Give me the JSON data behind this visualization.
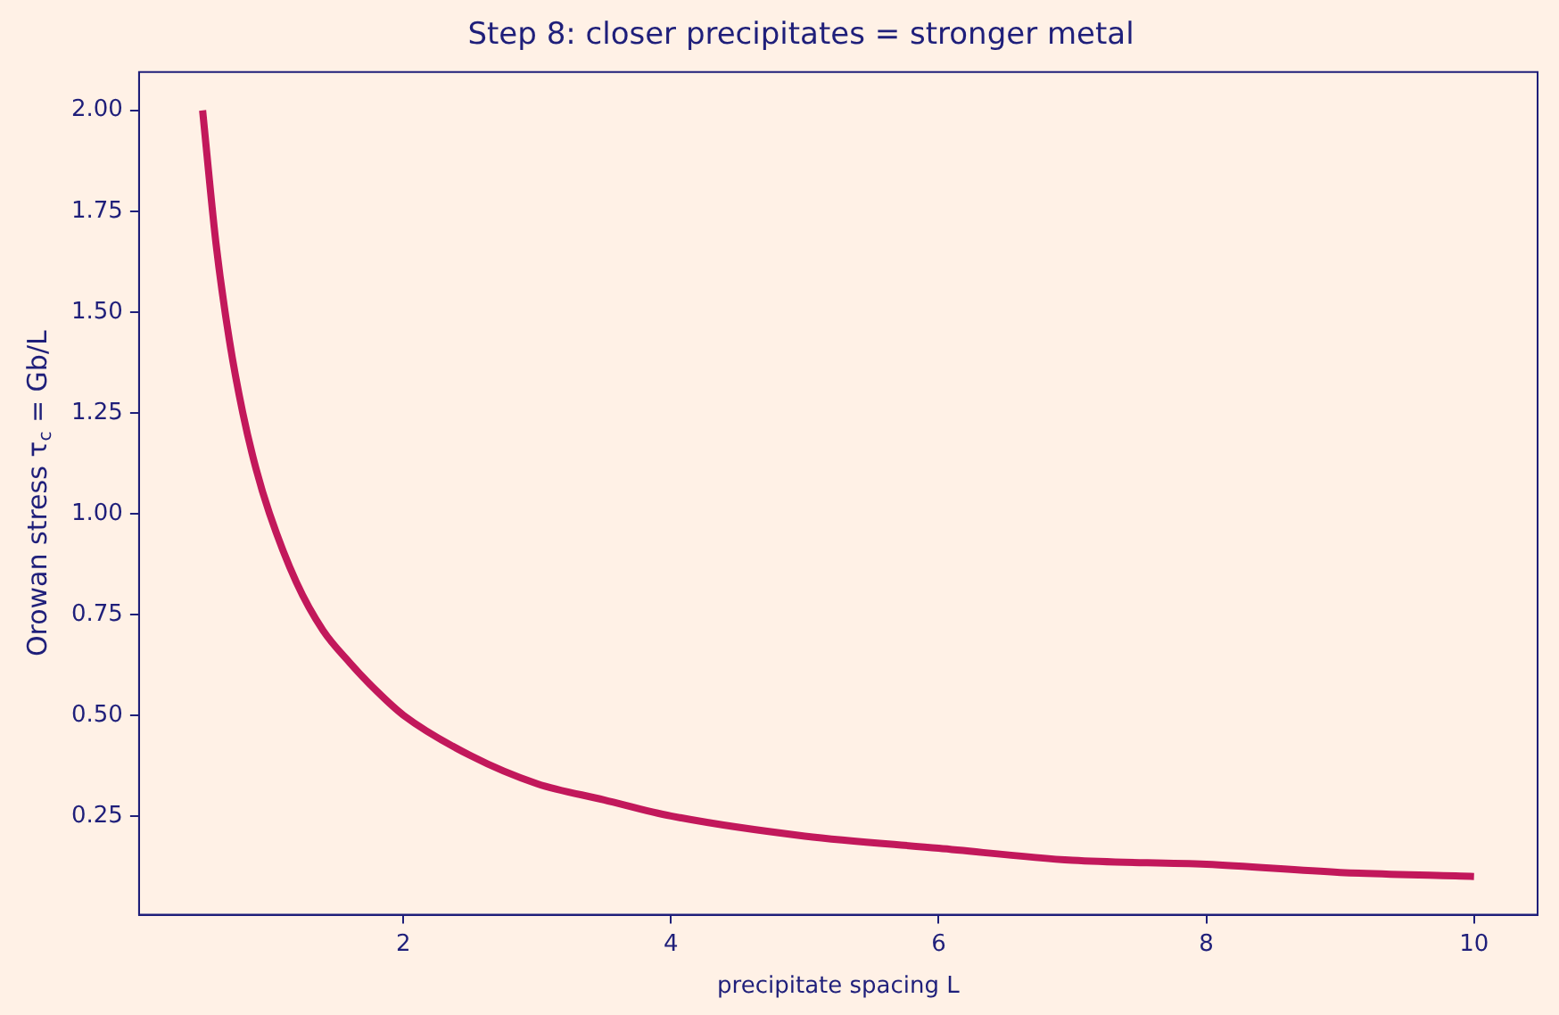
{
  "chart_data": {
    "type": "line",
    "title": "Step 8: closer precipitates = stronger metal",
    "xlabel": "precipitate spacing L",
    "ylabel": "Orowan stress τ$_{c}$ = Gb/L",
    "x": [
      0.5,
      0.6,
      0.7,
      0.8,
      0.9,
      1,
      1.2,
      1.4,
      1.6,
      1.8,
      2,
      2.5,
      3,
      3.5,
      4,
      5,
      6,
      7,
      8,
      9,
      10
    ],
    "series": [
      {
        "color": "#c2185b",
        "values": [
          2,
          1.67,
          1.43,
          1.25,
          1.11,
          1,
          0.83,
          0.71,
          0.63,
          0.56,
          0.5,
          0.4,
          0.33,
          0.29,
          0.25,
          0.2,
          0.17,
          0.14,
          0.13,
          0.11,
          0.1
        ]
      }
    ],
    "xlim": [
      0.025,
      10.475
    ],
    "ylim": [
      0.005,
      2.095
    ],
    "xticks": [
      2,
      4,
      6,
      8,
      10
    ],
    "yticks": [
      {
        "value": 0.25,
        "label": "0.25"
      },
      {
        "value": 0.5,
        "label": "0.50"
      },
      {
        "value": 0.75,
        "label": "0.75"
      },
      {
        "value": 1,
        "label": "1.00"
      },
      {
        "value": 1.25,
        "label": "1.25"
      },
      {
        "value": 1.5,
        "label": "1.50"
      },
      {
        "value": 1.75,
        "label": "1.75"
      },
      {
        "value": 2,
        "label": "2.00"
      }
    ],
    "marker": "none",
    "line_style": "solid",
    "legend": false
  }
}
